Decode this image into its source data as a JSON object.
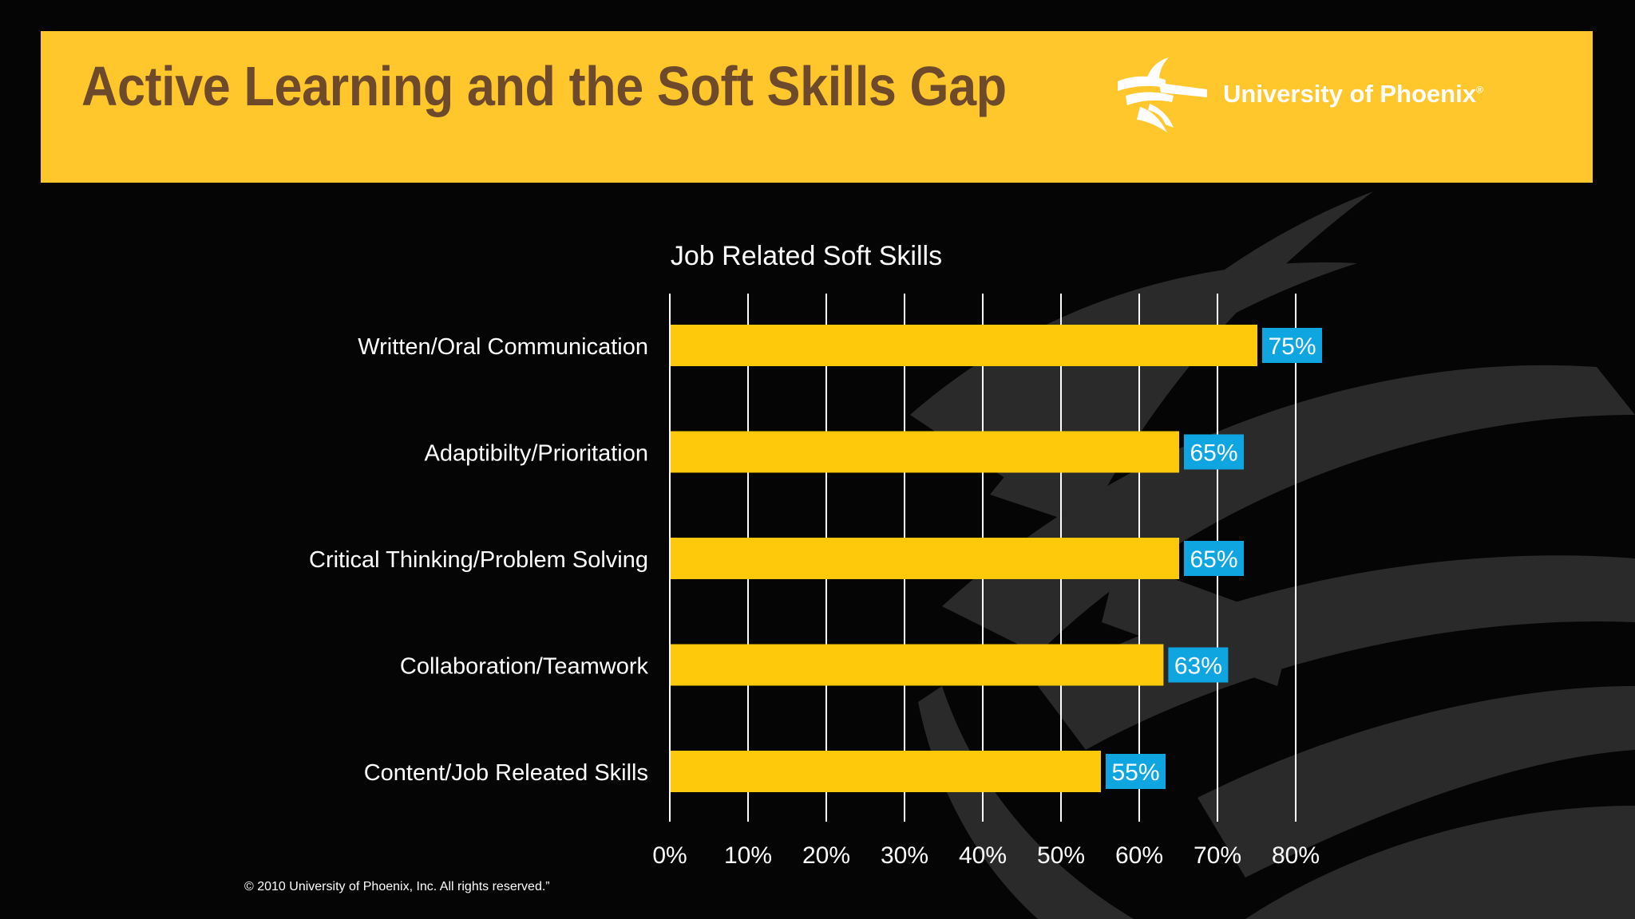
{
  "header": {
    "title": "Active Learning and the Soft Skills Gap",
    "logo_text": "University of Phoenix",
    "logo_mark": "®"
  },
  "colors": {
    "banner": "#ffc72c",
    "title": "#6e4a2c",
    "bar": "#ffc90b",
    "label_box": "#0ea5e0",
    "background": "#050505"
  },
  "chart_data": {
    "type": "bar",
    "orientation": "horizontal",
    "title": "Job Related Soft Skills",
    "categories": [
      "Written/Oral Communication",
      "Adaptibilty/Prioritation",
      "Critical Thinking/Problem Solving",
      "Collaboration/Teamwork",
      "Content/Job Releated Skills"
    ],
    "values": [
      75,
      65,
      65,
      63,
      55
    ],
    "value_labels": [
      "75%",
      "65%",
      "65%",
      "63%",
      "55%"
    ],
    "xlim": [
      0,
      80
    ],
    "xticks": [
      "0%",
      "10%",
      "20%",
      "30%",
      "40%",
      "50%",
      "60%",
      "70%",
      "80%"
    ],
    "grid": true
  },
  "footer": {
    "copyright": "© 2010 University of Phoenix, Inc. All rights reserved.”"
  }
}
